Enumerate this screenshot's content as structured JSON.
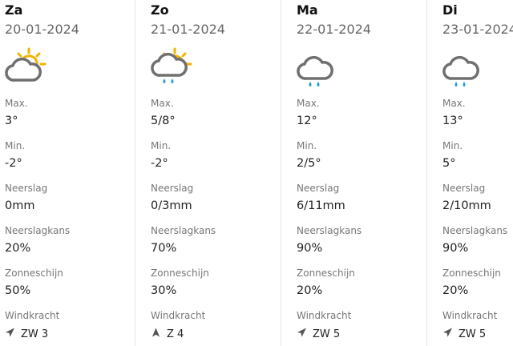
{
  "labels": {
    "max": "Max.",
    "min": "Min.",
    "precip": "Neerslag",
    "precip_chance": "Neerslagkans",
    "sunshine": "Zonneschijn",
    "wind": "Windkracht"
  },
  "colors": {
    "sun": "#f0b400",
    "cloud": "#707070",
    "rain": "#1a9fd9"
  },
  "days": [
    {
      "day": "Za",
      "date": "20-01-2024",
      "icon": "cloud-sun-icon",
      "max": "3°",
      "min": "-2°",
      "precip": "0mm",
      "precip_chance": "20%",
      "sunshine": "50%",
      "wind": "ZW 3",
      "wind_dir": "southwest"
    },
    {
      "day": "Zo",
      "date": "21-01-2024",
      "icon": "cloud-sun-rain-icon",
      "max": "5/8°",
      "min": "-2°",
      "precip": "0/3mm",
      "precip_chance": "70%",
      "sunshine": "30%",
      "wind": "Z 4",
      "wind_dir": "south"
    },
    {
      "day": "Ma",
      "date": "22-01-2024",
      "icon": "cloud-rain-icon",
      "max": "12°",
      "min": "2/5°",
      "precip": "6/11mm",
      "precip_chance": "90%",
      "sunshine": "20%",
      "wind": "ZW 5",
      "wind_dir": "southwest"
    },
    {
      "day": "Di",
      "date": "23-01-2024",
      "icon": "cloud-rain-icon",
      "max": "13°",
      "min": "5°",
      "precip": "2/10mm",
      "precip_chance": "90%",
      "sunshine": "20%",
      "wind": "ZW 5",
      "wind_dir": "southwest"
    }
  ]
}
